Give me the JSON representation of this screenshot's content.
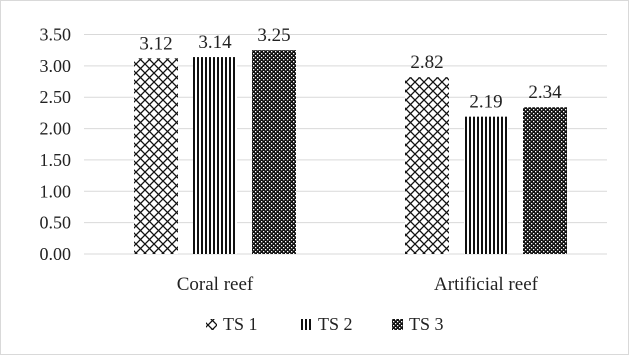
{
  "chart_data": {
    "type": "bar",
    "categories": [
      "Coral reef",
      "Artificial reef"
    ],
    "series": [
      {
        "name": "TS 1",
        "values": [
          3.12,
          2.82
        ],
        "pattern": "zigzag-crosshatch"
      },
      {
        "name": "TS 2",
        "values": [
          3.14,
          2.19
        ],
        "pattern": "vertical-stripes"
      },
      {
        "name": "TS 3",
        "values": [
          3.25,
          2.34
        ],
        "pattern": "checker-dots"
      }
    ],
    "data_labels": [
      [
        "3.12",
        "2.82"
      ],
      [
        "3.14",
        "2.19"
      ],
      [
        "3.25",
        "2.34"
      ]
    ],
    "yticks": [
      "0.00",
      "0.50",
      "1.00",
      "1.50",
      "2.00",
      "2.50",
      "3.00",
      "3.50"
    ],
    "ylim": [
      0,
      3.5
    ],
    "title": "",
    "xlabel": "",
    "ylabel": "",
    "grid": true,
    "legend_position": "bottom",
    "colors": {
      "bar": "#111111",
      "grid": "#d9d9d9",
      "text": "#222222"
    }
  }
}
